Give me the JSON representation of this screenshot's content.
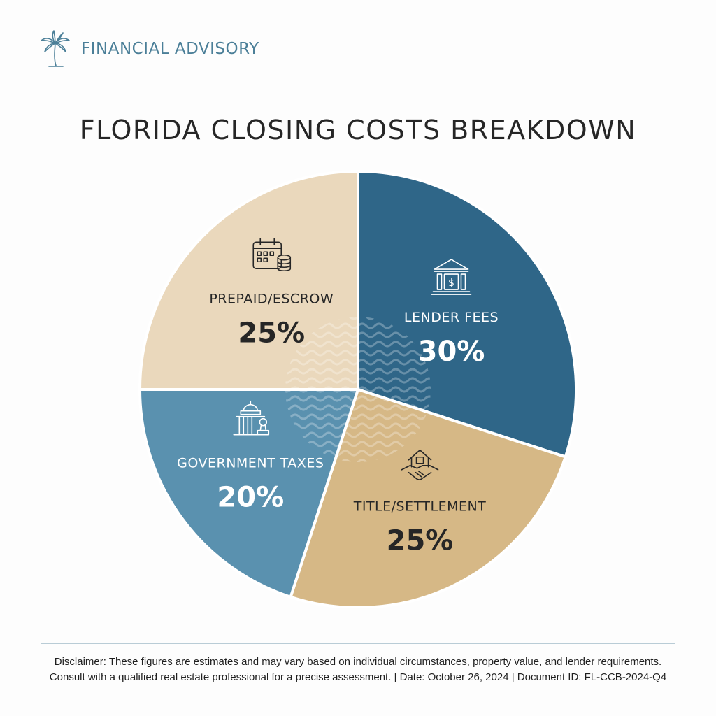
{
  "header": {
    "brand_name": "FINANCIAL ADVISORY",
    "logo_icon": "palm-tree-icon"
  },
  "chart_data": {
    "type": "pie",
    "title": "FLORIDA CLOSING COSTS BREAKDOWN",
    "slices": [
      {
        "label": "LENDER FEES",
        "value": 30,
        "value_label": "30%",
        "color": "#2f6688",
        "text_color": "#ffffff",
        "icon": "bank-icon"
      },
      {
        "label": "TITLE/SETTLEMENT",
        "value": 25,
        "value_label": "25%",
        "color": "#d6b886",
        "text_color": "#262626",
        "icon": "house-handshake-icon"
      },
      {
        "label": "GOVERNMENT TAXES",
        "value": 20,
        "value_label": "20%",
        "color": "#5a91af",
        "text_color": "#ffffff",
        "icon": "capitol-stamp-icon"
      },
      {
        "label": "PREPAID/ESCROW",
        "value": 25,
        "value_label": "25%",
        "color": "#ead8bc",
        "text_color": "#262626",
        "icon": "calendar-coins-icon"
      }
    ]
  },
  "footer": {
    "disclaimer_line1": "Disclaimer: These figures are estimates and may vary based on individual circumstances, property value, and lender requirements.",
    "disclaimer_line2": "Consult with a qualified real estate professional for a precise assessment. | Date: October 26, 2024 | Document ID: FL-CCB-2024-Q4"
  }
}
